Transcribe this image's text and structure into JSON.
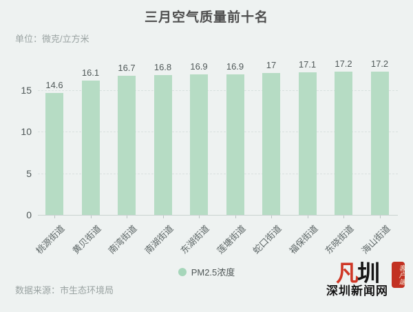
{
  "chart_data": {
    "type": "bar",
    "title": "三月空气质量前十名",
    "unit_label": "单位：微克/立方米",
    "categories": [
      "桃源街道",
      "黄贝街道",
      "南湾街道",
      "南湖街道",
      "东湖街道",
      "莲塘街道",
      "蛇口街道",
      "福保街道",
      "东晓街道",
      "海山街道"
    ],
    "values": [
      14.6,
      16.1,
      16.7,
      16.8,
      16.9,
      16.9,
      17,
      17.1,
      17.2,
      17.2
    ],
    "series_name": "PM2.5浓度",
    "ylabel": "",
    "xlabel": "",
    "ylim": [
      0,
      17.5
    ],
    "yticks": [
      0,
      5,
      10,
      15
    ],
    "grid": "horizontal-dashed",
    "legend_position": "bottom-center",
    "bar_color": "#b6dcc4",
    "legend_dot_color": "#a6d6ba"
  },
  "footer": {
    "source": "数据来源：市生态环境局"
  },
  "logo": {
    "mark_left": "凡",
    "mark_right": "圳",
    "name": "深圳新闻网",
    "badge": "客户端",
    "red": "#cf3726"
  }
}
